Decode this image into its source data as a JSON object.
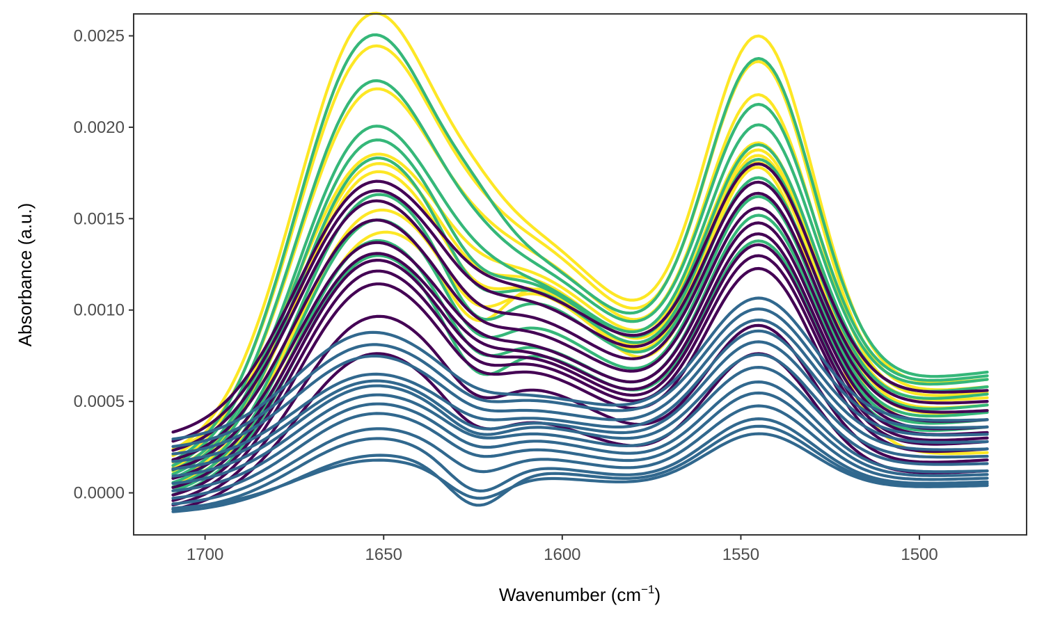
{
  "chart_data": {
    "type": "line",
    "xlabel": "Wavenumber (cm",
    "xlabel_sup": "−1",
    "xlabel_close": ")",
    "ylabel": "Absorbance (a.u.)",
    "xlim": [
      1720,
      1470
    ],
    "ylim": [
      -0.00023,
      0.00262
    ],
    "x_reversed": true,
    "x_ticks": [
      1700,
      1650,
      1600,
      1550,
      1500
    ],
    "x_tick_labels": [
      "1700",
      "1650",
      "1600",
      "1550",
      "1500"
    ],
    "y_ticks": [
      0.0,
      0.0005,
      0.001,
      0.0015,
      0.002,
      0.0025
    ],
    "y_tick_labels": [
      "0.0000",
      "0.0005",
      "0.0010",
      "0.0015",
      "0.0020",
      "0.0025"
    ],
    "x_range": [
      1709,
      1481
    ],
    "grid": false,
    "legend": "none",
    "colors": {
      "purple": "#440154",
      "blue": "#31688E",
      "green": "#35B779",
      "yellow": "#FDE725"
    },
    "series_format": "[color, value@1709, amide-I peak (~1655), value@1620, valley (~1585), amide-II peak (~1545), value@1481]",
    "series": [
      {
        "color": "#FDE725",
        "points": [
          0.00018,
          0.00247,
          0.0017,
          0.00108,
          0.00247,
          0.00062
        ]
      },
      {
        "color": "#FDE725",
        "points": [
          0.00015,
          0.00229,
          0.0016,
          0.00104,
          0.00233,
          0.00058
        ]
      },
      {
        "color": "#FDE725",
        "points": [
          0.00012,
          0.00206,
          0.00148,
          0.00098,
          0.00215,
          0.00055
        ]
      },
      {
        "color": "#FDE725",
        "points": [
          0.0002,
          0.00172,
          0.00128,
          0.00092,
          0.00189,
          0.00052
        ]
      },
      {
        "color": "#FDE725",
        "points": [
          0.0001,
          0.00166,
          0.0012,
          0.00088,
          0.00185,
          0.00048
        ]
      },
      {
        "color": "#FDE725",
        "points": [
          8e-05,
          0.00162,
          0.00112,
          0.00084,
          0.00182,
          0.00045
        ]
      },
      {
        "color": "#FDE725",
        "points": [
          5e-05,
          0.0014,
          0.00102,
          0.00082,
          0.00178,
          0.0004
        ]
      },
      {
        "color": "#FDE725",
        "points": [
          2e-05,
          0.00125,
          0.00096,
          0.0008,
          0.00175,
          0.00022
        ]
      },
      {
        "color": "#35B779",
        "points": [
          0.00012,
          0.00237,
          0.0016,
          0.001,
          0.00235,
          0.00066
        ]
      },
      {
        "color": "#35B779",
        "points": [
          0.0001,
          0.00212,
          0.00145,
          0.00096,
          0.0021,
          0.00064
        ]
      },
      {
        "color": "#35B779",
        "points": [
          8e-05,
          0.00188,
          0.0013,
          0.0009,
          0.00199,
          0.00062
        ]
      },
      {
        "color": "#35B779",
        "points": [
          6e-05,
          0.0018,
          0.0012,
          0.00088,
          0.00188,
          0.00058
        ]
      },
      {
        "color": "#35B779",
        "points": [
          4e-05,
          0.0017,
          0.0011,
          0.00085,
          0.0018,
          0.00054
        ]
      },
      {
        "color": "#35B779",
        "points": [
          2e-05,
          0.0015,
          0.00095,
          0.0008,
          0.0017,
          0.00048
        ]
      },
      {
        "color": "#35B779",
        "points": [
          0.0,
          0.00138,
          0.00085,
          0.0007,
          0.0016,
          0.00044
        ]
      },
      {
        "color": "#35B779",
        "points": [
          -2e-05,
          0.00128,
          0.00075,
          0.00062,
          0.0015,
          0.0004
        ]
      },
      {
        "color": "#35B779",
        "points": [
          -4e-05,
          0.0012,
          0.00065,
          0.00058,
          0.00136,
          0.00036
        ]
      },
      {
        "color": "#440154",
        "points": [
          0.0003,
          0.0016,
          0.00118,
          0.00088,
          0.00178,
          0.00056
        ]
      },
      {
        "color": "#440154",
        "points": [
          0.00025,
          0.00155,
          0.0011,
          0.00082,
          0.00168,
          0.0005
        ]
      },
      {
        "color": "#440154",
        "points": [
          0.0002,
          0.0015,
          0.001,
          0.00075,
          0.00162,
          0.00045
        ]
      },
      {
        "color": "#440154",
        "points": [
          0.00015,
          0.0014,
          0.00092,
          0.00068,
          0.00154,
          0.0004
        ]
      },
      {
        "color": "#440154",
        "points": [
          0.0001,
          0.00128,
          0.00085,
          0.00062,
          0.00146,
          0.00036
        ]
      },
      {
        "color": "#440154",
        "points": [
          5e-05,
          0.00122,
          0.0008,
          0.00058,
          0.0014,
          0.00033
        ]
      },
      {
        "color": "#440154",
        "points": [
          0.0,
          0.00118,
          0.00075,
          0.00055,
          0.00134,
          0.0003
        ]
      },
      {
        "color": "#440154",
        "points": [
          -4e-05,
          0.00112,
          0.0007,
          0.00052,
          0.00128,
          0.00028
        ]
      },
      {
        "color": "#440154",
        "points": [
          -7e-05,
          0.00105,
          0.00065,
          0.00048,
          0.00121,
          0.00024
        ]
      },
      {
        "color": "#440154",
        "points": [
          -9e-05,
          0.00088,
          0.00052,
          0.0004,
          0.0009,
          0.00018
        ]
      },
      {
        "color": "#440154",
        "points": [
          -0.00011,
          0.0007,
          0.00035,
          0.00027,
          0.00075,
          0.00012
        ]
      },
      {
        "color": "#31688E",
        "points": [
          0.00028,
          0.00085,
          0.00055,
          0.00048,
          0.00106,
          0.0004
        ]
      },
      {
        "color": "#31688E",
        "points": [
          0.00024,
          0.00078,
          0.0005,
          0.00045,
          0.001,
          0.00036
        ]
      },
      {
        "color": "#31688E",
        "points": [
          0.0002,
          0.00072,
          0.00045,
          0.0004,
          0.00094,
          0.00032
        ]
      },
      {
        "color": "#31688E",
        "points": [
          0.00016,
          0.00062,
          0.0004,
          0.00036,
          0.00088,
          0.00028
        ]
      },
      {
        "color": "#31688E",
        "points": [
          0.00012,
          0.00058,
          0.00035,
          0.00033,
          0.00082,
          0.00024
        ]
      },
      {
        "color": "#31688E",
        "points": [
          8e-05,
          0.00055,
          0.00032,
          0.0003,
          0.00075,
          0.0002
        ]
      },
      {
        "color": "#31688E",
        "points": [
          4e-05,
          0.0005,
          0.0003,
          0.00026,
          0.00068,
          0.00016
        ]
      },
      {
        "color": "#31688E",
        "points": [
          0.0,
          0.00045,
          0.00025,
          0.00022,
          0.0006,
          0.00012
        ]
      },
      {
        "color": "#31688E",
        "points": [
          -4e-05,
          0.0004,
          0.0002,
          0.00018,
          0.00054,
          0.0001
        ]
      },
      {
        "color": "#31688E",
        "points": [
          -7e-05,
          0.00032,
          0.00012,
          0.00014,
          0.00047,
          8e-05
        ]
      },
      {
        "color": "#31688E",
        "points": [
          -0.0001,
          0.00027,
          2e-05,
          0.0001,
          0.0004,
          6e-05
        ]
      },
      {
        "color": "#31688E",
        "points": [
          -0.00011,
          0.00018,
          -5e-05,
          8e-05,
          0.00036,
          5e-05
        ]
      },
      {
        "color": "#31688E",
        "points": [
          -9e-05,
          0.00016,
          -2e-05,
          6e-05,
          0.00032,
          4e-05
        ]
      }
    ]
  }
}
